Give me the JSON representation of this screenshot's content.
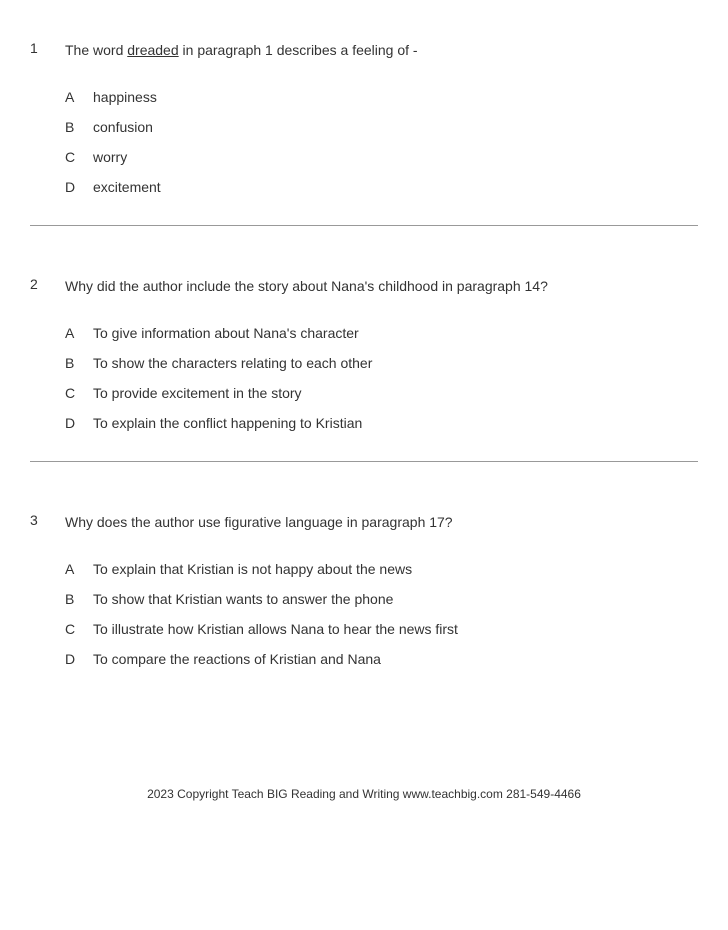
{
  "questions": [
    {
      "number": "1",
      "stem_pre": "The word ",
      "stem_underlined": "dreaded",
      "stem_post": " in paragraph 1 describes a feeling of -",
      "choices": [
        {
          "letter": "A",
          "text": "happiness"
        },
        {
          "letter": "B",
          "text": "confusion"
        },
        {
          "letter": "C",
          "text": "worry"
        },
        {
          "letter": "D",
          "text": "excitement"
        }
      ]
    },
    {
      "number": "2",
      "stem_pre": "Why did the author include the story about Nana's childhood in paragraph 14?",
      "stem_underlined": "",
      "stem_post": "",
      "choices": [
        {
          "letter": "A",
          "text": "To give information about Nana's character"
        },
        {
          "letter": "B",
          "text": "To show the characters relating to each other"
        },
        {
          "letter": "C",
          "text": "To provide excitement in the story"
        },
        {
          "letter": "D",
          "text": "To explain the conflict happening to Kristian"
        }
      ]
    },
    {
      "number": "3",
      "stem_pre": "Why does the author use figurative language in paragraph 17?",
      "stem_underlined": "",
      "stem_post": "",
      "choices": [
        {
          "letter": "A",
          "text": "To explain that Kristian is not happy about the news"
        },
        {
          "letter": "B",
          "text": "To show that Kristian wants to answer the phone"
        },
        {
          "letter": "C",
          "text": "To illustrate how Kristian allows Nana to hear the news first"
        },
        {
          "letter": "D",
          "text": "To compare the reactions of Kristian and Nana"
        }
      ]
    }
  ],
  "footer": "2023 Copyright Teach BIG Reading and Writing www.teachbig.com 281-549-4466"
}
